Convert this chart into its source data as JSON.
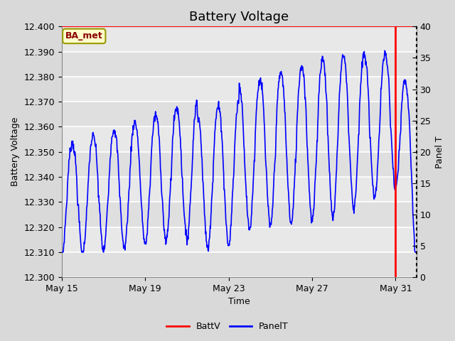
{
  "title": "Battery Voltage",
  "xlabel": "Time",
  "ylabel_left": "Battery Voltage",
  "ylabel_right": "Panel T",
  "ylim_left": [
    12.3,
    12.4
  ],
  "ylim_right": [
    0,
    40
  ],
  "yticks_left": [
    12.3,
    12.31,
    12.32,
    12.33,
    12.34,
    12.35,
    12.36,
    12.37,
    12.38,
    12.39,
    12.4
  ],
  "yticks_right": [
    0,
    5,
    10,
    15,
    20,
    25,
    30,
    35,
    40
  ],
  "xtick_labels": [
    "May 15",
    "May 19",
    "May 23",
    "May 27",
    "May 31"
  ],
  "xtick_positions": [
    0,
    4,
    8,
    12,
    16
  ],
  "xlim": [
    0,
    17
  ],
  "bg_color": "#d9d9d9",
  "plot_bg_color": "#e8e8e8",
  "stripe_color": "#d0d0d0",
  "line_color_batt": "red",
  "line_color_panel": "blue",
  "vline_x": 16,
  "vline_color": "red",
  "label_box_text": "BA_met",
  "label_box_bg": "#ffffcc",
  "label_box_edge": "#999900",
  "label_box_text_color": "#8b0000",
  "legend_labels": [
    "BattV",
    "PanelT"
  ],
  "legend_colors": [
    "red",
    "blue"
  ],
  "title_fontsize": 13,
  "axis_fontsize": 9,
  "tick_fontsize": 9
}
